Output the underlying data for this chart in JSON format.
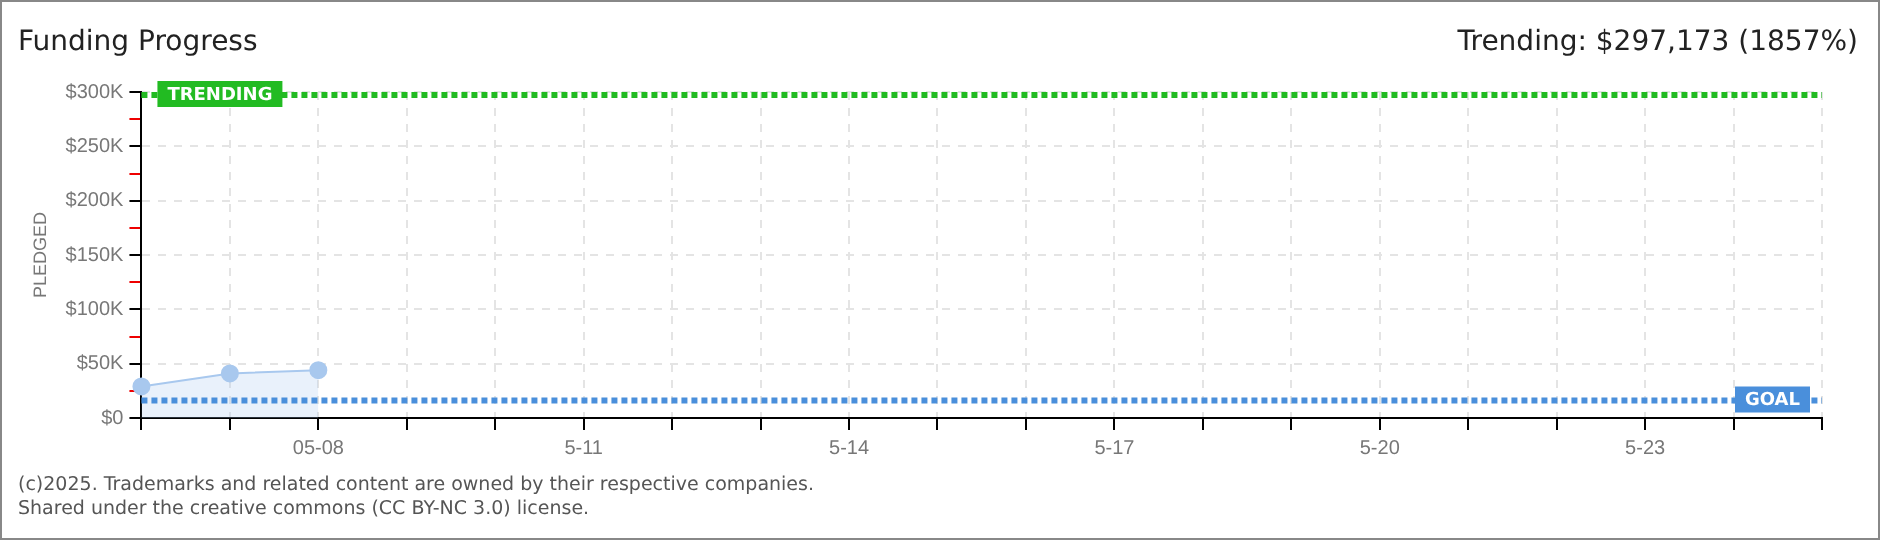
{
  "chart_data": {
    "type": "area",
    "title": "Funding Progress",
    "categories": [
      null,
      null,
      "05-08",
      null,
      null,
      "5-11",
      null,
      null,
      "5-14",
      null,
      null,
      "5-17",
      null,
      null,
      "5-20",
      null,
      null,
      "5-23",
      null,
      null
    ],
    "series": [
      {
        "color": "#a8c8ee",
        "values": [
          29000,
          41000,
          44000,
          null,
          null,
          null,
          null,
          null,
          null,
          null,
          null,
          null,
          null,
          null,
          null,
          null,
          null,
          null,
          null,
          null
        ]
      }
    ],
    "ylabel": "PLEDGED",
    "ylim": [
      0,
      300000
    ],
    "yticks": [
      {
        "value": 0,
        "label": "$0"
      },
      {
        "value": 25000,
        "label": null
      },
      {
        "value": 50000,
        "label": "$50K"
      },
      {
        "value": 75000,
        "label": null
      },
      {
        "value": 100000,
        "label": "$100K"
      },
      {
        "value": 125000,
        "label": null
      },
      {
        "value": 150000,
        "label": "$150K"
      },
      {
        "value": 175000,
        "label": null
      },
      {
        "value": 200000,
        "label": "$200K"
      },
      {
        "value": 225000,
        "label": null
      },
      {
        "value": 250000,
        "label": "$250K"
      },
      {
        "value": 275000,
        "label": null
      },
      {
        "value": 300000,
        "label": "$300K"
      }
    ],
    "ref_lines": [
      {
        "axis": "y",
        "value": 297173,
        "label": "TRENDING",
        "color": "#22bb22",
        "line_style": "dotted"
      },
      {
        "axis": "y",
        "value": 16000,
        "label": "GOAL",
        "color": "#4a8fdb",
        "line_style": "dotted"
      }
    ],
    "annotations": [
      "Trending: $297,173 (1857%)",
      "(c)2025. Trademarks and related content are owned by their respective companies.",
      "Shared under the creative commons (CC BY-NC 3.0) license."
    ],
    "grid": true,
    "marker": "circle",
    "legend": false
  }
}
